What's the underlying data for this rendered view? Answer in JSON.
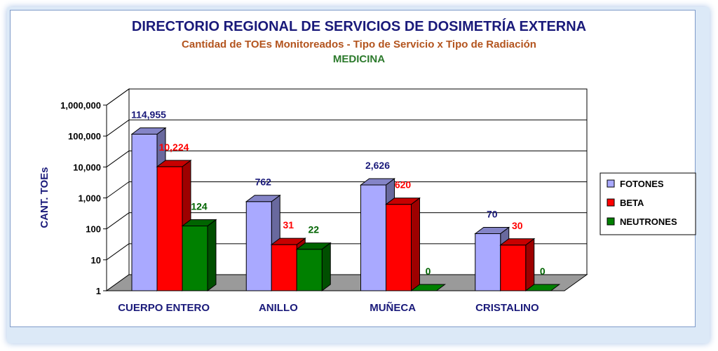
{
  "chart_data": {
    "type": "bar",
    "title": "DIRECTORIO REGIONAL DE SERVICIOS DE DOSIMETRÍA EXTERNA",
    "subtitle": "Cantidad de TOEs Monitoreados - Tipo de Servicio x Tipo de Radiación",
    "subtitle2": "MEDICINA",
    "ylabel": "CANT. TOEs",
    "xlabel": "",
    "y_scale": "log",
    "ylim": [
      1,
      1000000
    ],
    "y_ticks": [
      "1",
      "10",
      "100",
      "1,000",
      "10,000",
      "100,000",
      "1,000,000"
    ],
    "categories": [
      "CUERPO ENTERO",
      "ANILLO",
      "MUÑECA",
      "CRISTALINO"
    ],
    "legend_position": "right",
    "grid": true,
    "series": [
      {
        "name": "FOTONES",
        "color": "#a9a9ff",
        "label_color": "#1a1a7a",
        "values": [
          114955,
          762,
          2626,
          70
        ],
        "labels": [
          "114,955",
          "762",
          "2,626",
          "70"
        ]
      },
      {
        "name": "BETA",
        "color": "#ff0000",
        "label_color": "#ff0000",
        "values": [
          10224,
          31,
          620,
          30
        ],
        "labels": [
          "10,224",
          "31",
          "620",
          "30"
        ]
      },
      {
        "name": "NEUTRONES",
        "color": "#008000",
        "label_color": "#006400",
        "values": [
          124,
          22,
          0,
          0
        ],
        "labels": [
          "124",
          "22",
          "0",
          "0"
        ]
      }
    ]
  }
}
